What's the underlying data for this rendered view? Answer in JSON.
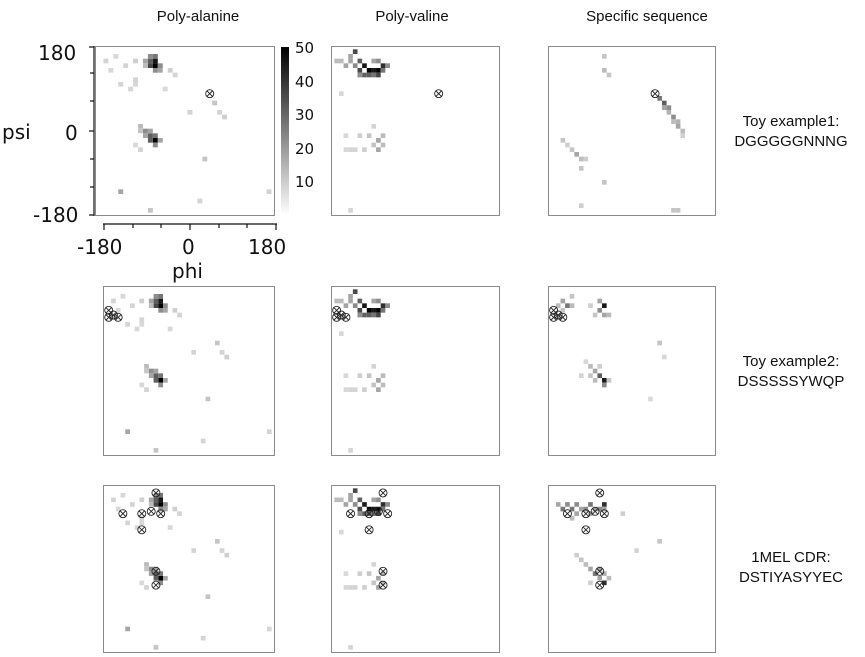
{
  "columns": [
    "Poly-alanine",
    "Poly-valine",
    "Specific sequence"
  ],
  "rows": [
    {
      "label_line1": "Toy example1:",
      "label_line2": "DGGGGGNNNG"
    },
    {
      "label_line1": "Toy example2:",
      "label_line2": "DSSSSSYWQP"
    },
    {
      "label_line1": "1MEL CDR:",
      "label_line2": "DSTIYASYYEC"
    }
  ],
  "axes": {
    "y_label": "psi",
    "x_label": "phi",
    "y_ticks": [
      "180",
      "0",
      "-180"
    ],
    "x_ticks": [
      "-180",
      "0",
      "180"
    ]
  },
  "colorbar": {
    "ticks": [
      "50",
      "40",
      "30",
      "20",
      "10"
    ],
    "max": 50
  },
  "chart_data": {
    "type": "heatmap",
    "x_name": "phi",
    "y_name": "psi",
    "xlim": [
      -180,
      180
    ],
    "ylim": [
      -180,
      180
    ],
    "bin_size_deg": 10,
    "color_scale": {
      "min": 0,
      "max": 50,
      "low_color": "#ffffff",
      "high_color": "#000000"
    },
    "density": {
      "poly_alanine": [
        [
          -70,
          150,
          30
        ],
        [
          -60,
          150,
          45
        ],
        [
          -70,
          140,
          35
        ],
        [
          -60,
          140,
          50
        ],
        [
          -80,
          150,
          15
        ],
        [
          -50,
          140,
          20
        ],
        [
          -70,
          160,
          20
        ],
        [
          -60,
          160,
          25
        ],
        [
          -80,
          140,
          10
        ],
        [
          -50,
          130,
          15
        ],
        [
          -60,
          130,
          20
        ],
        [
          -90,
          10,
          10
        ],
        [
          -80,
          0,
          20
        ],
        [
          -70,
          -10,
          30
        ],
        [
          -60,
          -20,
          50
        ],
        [
          -70,
          -20,
          30
        ],
        [
          -80,
          -10,
          15
        ],
        [
          -90,
          0,
          8
        ],
        [
          -60,
          -10,
          25
        ],
        [
          -50,
          -20,
          15
        ],
        [
          -70,
          0,
          15
        ],
        [
          -60,
          -30,
          20
        ],
        [
          -120,
          140,
          5
        ],
        [
          -160,
          150,
          5
        ],
        [
          -150,
          130,
          4
        ],
        [
          -130,
          100,
          5
        ],
        [
          -110,
          90,
          4
        ],
        [
          -100,
          110,
          5
        ],
        [
          -140,
          160,
          4
        ],
        [
          -100,
          150,
          6
        ],
        [
          -30,
          130,
          6
        ],
        [
          -20,
          120,
          5
        ],
        [
          -40,
          90,
          4
        ],
        [
          -100,
          100,
          4
        ],
        [
          60,
          60,
          8
        ],
        [
          70,
          40,
          5
        ],
        [
          80,
          30,
          6
        ],
        [
          40,
          -60,
          8
        ],
        [
          10,
          40,
          5
        ],
        [
          -130,
          -130,
          15
        ],
        [
          -70,
          -170,
          8
        ],
        [
          30,
          -150,
          5
        ],
        [
          170,
          -130,
          5
        ],
        [
          -90,
          -40,
          5
        ],
        [
          -100,
          -30,
          4
        ]
      ],
      "poly_valine": [
        [
          -120,
          130,
          35
        ],
        [
          -110,
          140,
          45
        ],
        [
          -100,
          130,
          50
        ],
        [
          -90,
          130,
          45
        ],
        [
          -80,
          130,
          50
        ],
        [
          -70,
          140,
          40
        ],
        [
          -120,
          150,
          30
        ],
        [
          -130,
          140,
          20
        ],
        [
          -140,
          150,
          15
        ],
        [
          -150,
          140,
          15
        ],
        [
          -160,
          150,
          10
        ],
        [
          -170,
          150,
          10
        ],
        [
          -110,
          120,
          30
        ],
        [
          -90,
          120,
          25
        ],
        [
          -80,
          120,
          35
        ],
        [
          -100,
          120,
          30
        ],
        [
          -120,
          120,
          20
        ],
        [
          -70,
          130,
          25
        ],
        [
          -60,
          140,
          20
        ],
        [
          -130,
          170,
          35
        ],
        [
          -140,
          160,
          15
        ],
        [
          -80,
          150,
          20
        ],
        [
          -90,
          150,
          15
        ],
        [
          -80,
          -20,
          15
        ],
        [
          -70,
          -10,
          10
        ],
        [
          -80,
          -40,
          15
        ],
        [
          -70,
          -30,
          10
        ],
        [
          -90,
          -30,
          8
        ],
        [
          -100,
          -10,
          8
        ],
        [
          -120,
          -10,
          6
        ],
        [
          -110,
          -40,
          6
        ],
        [
          -130,
          -40,
          5
        ],
        [
          -140,
          -40,
          5
        ],
        [
          -150,
          -10,
          4
        ],
        [
          -150,
          -40,
          4
        ],
        [
          -90,
          10,
          5
        ],
        [
          -160,
          80,
          4
        ],
        [
          -140,
          -170,
          5
        ]
      ],
      "specific_dgggg": [
        [
          -60,
          160,
          8
        ],
        [
          -60,
          130,
          10
        ],
        [
          -50,
          120,
          8
        ],
        [
          -150,
          -20,
          8
        ],
        [
          -140,
          -30,
          6
        ],
        [
          -130,
          -40,
          8
        ],
        [
          -120,
          -50,
          15
        ],
        [
          -110,
          -60,
          10
        ],
        [
          -100,
          -60,
          6
        ],
        [
          -110,
          -80,
          8
        ],
        [
          60,
          70,
          25
        ],
        [
          70,
          60,
          30
        ],
        [
          80,
          50,
          20
        ],
        [
          70,
          50,
          15
        ],
        [
          90,
          30,
          20
        ],
        [
          100,
          10,
          15
        ],
        [
          110,
          0,
          10
        ],
        [
          100,
          20,
          12
        ],
        [
          90,
          20,
          10
        ],
        [
          80,
          40,
          12
        ],
        [
          110,
          -10,
          6
        ],
        [
          -60,
          -110,
          8
        ],
        [
          -110,
          -160,
          6
        ],
        [
          100,
          -170,
          8
        ],
        [
          90,
          -170,
          8
        ]
      ],
      "specific_dsss": [
        [
          -160,
          140,
          10
        ],
        [
          -150,
          130,
          8
        ],
        [
          -150,
          150,
          15
        ],
        [
          -140,
          140,
          25
        ],
        [
          -130,
          140,
          10
        ],
        [
          -130,
          160,
          8
        ],
        [
          -70,
          150,
          15
        ],
        [
          -60,
          140,
          45
        ],
        [
          -70,
          130,
          20
        ],
        [
          -50,
          120,
          10
        ],
        [
          -60,
          120,
          15
        ],
        [
          -80,
          120,
          8
        ],
        [
          -90,
          140,
          6
        ],
        [
          -90,
          10,
          10
        ],
        [
          -80,
          0,
          15
        ],
        [
          -70,
          -10,
          30
        ],
        [
          -60,
          -20,
          45
        ],
        [
          -60,
          -30,
          20
        ],
        [
          -80,
          -20,
          10
        ],
        [
          -90,
          -10,
          8
        ],
        [
          -100,
          20,
          4
        ],
        [
          -70,
          10,
          6
        ],
        [
          -50,
          -20,
          8
        ],
        [
          -110,
          -10,
          5
        ],
        [
          60,
          60,
          8
        ],
        [
          70,
          30,
          4
        ],
        [
          40,
          -60,
          4
        ]
      ],
      "specific_1mel": [
        [
          -160,
          140,
          15
        ],
        [
          -150,
          130,
          25
        ],
        [
          -140,
          140,
          20
        ],
        [
          -130,
          130,
          25
        ],
        [
          -120,
          140,
          20
        ],
        [
          -110,
          130,
          15
        ],
        [
          -100,
          130,
          20
        ],
        [
          -90,
          140,
          25
        ],
        [
          -80,
          130,
          15
        ],
        [
          -70,
          130,
          20
        ],
        [
          -60,
          140,
          40
        ],
        [
          -60,
          130,
          15
        ],
        [
          -130,
          110,
          10
        ],
        [
          -120,
          120,
          15
        ],
        [
          -90,
          120,
          15
        ],
        [
          -100,
          10,
          10
        ],
        [
          -90,
          0,
          15
        ],
        [
          -80,
          -10,
          25
        ],
        [
          -70,
          -20,
          15
        ],
        [
          -60,
          -30,
          40
        ],
        [
          -70,
          0,
          15
        ],
        [
          -110,
          20,
          8
        ],
        [
          -120,
          30,
          6
        ],
        [
          -90,
          -30,
          6
        ],
        [
          -60,
          -10,
          12
        ],
        [
          -50,
          -20,
          10
        ],
        [
          10,
          40,
          5
        ],
        [
          60,
          60,
          8
        ],
        [
          -20,
          120,
          6
        ]
      ]
    },
    "markers": {
      "example1": [
        [
          50,
          80
        ]
      ],
      "example2": [
        [
          -170,
          130
        ],
        [
          -170,
          115
        ],
        [
          -160,
          120
        ],
        [
          -150,
          115
        ]
      ],
      "example3": [
        [
          -70,
          165
        ],
        [
          -140,
          120
        ],
        [
          -100,
          120
        ],
        [
          -80,
          125
        ],
        [
          -60,
          120
        ],
        [
          -100,
          85
        ],
        [
          -70,
          -5
        ],
        [
          -70,
          -35
        ]
      ]
    },
    "panels": [
      {
        "row": 0,
        "col": 0,
        "density": "poly_alanine",
        "markers": "example1"
      },
      {
        "row": 0,
        "col": 1,
        "density": "poly_valine",
        "markers": "example1"
      },
      {
        "row": 0,
        "col": 2,
        "density": "specific_dgggg",
        "markers": "example1"
      },
      {
        "row": 1,
        "col": 0,
        "density": "poly_alanine",
        "markers": "example2"
      },
      {
        "row": 1,
        "col": 1,
        "density": "poly_valine",
        "markers": "example2"
      },
      {
        "row": 1,
        "col": 2,
        "density": "specific_dsss",
        "markers": "example2"
      },
      {
        "row": 2,
        "col": 0,
        "density": "poly_alanine",
        "markers": "example3"
      },
      {
        "row": 2,
        "col": 1,
        "density": "poly_valine",
        "markers": "example3"
      },
      {
        "row": 2,
        "col": 2,
        "density": "specific_1mel",
        "markers": "example3"
      }
    ]
  }
}
